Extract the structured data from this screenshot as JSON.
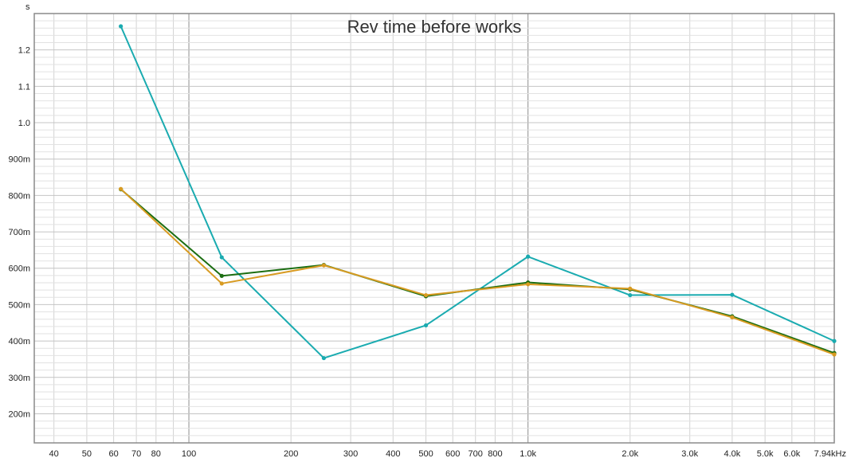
{
  "chart_data": {
    "type": "line",
    "title": "Rev time before works",
    "y_unit": "s",
    "x_scale": "log",
    "xlim": [
      35,
      8000
    ],
    "ylim": [
      0.12,
      1.3
    ],
    "grid": true,
    "x_ticks": [
      {
        "value": 40,
        "label": "40"
      },
      {
        "value": 50,
        "label": "50"
      },
      {
        "value": 60,
        "label": "60"
      },
      {
        "value": 70,
        "label": "70"
      },
      {
        "value": 80,
        "label": "80"
      },
      {
        "value": 100,
        "label": "100"
      },
      {
        "value": 200,
        "label": "200"
      },
      {
        "value": 300,
        "label": "300"
      },
      {
        "value": 400,
        "label": "400"
      },
      {
        "value": 500,
        "label": "500"
      },
      {
        "value": 600,
        "label": "600"
      },
      {
        "value": 700,
        "label": "700"
      },
      {
        "value": 800,
        "label": "800"
      },
      {
        "value": 1000,
        "label": "1.0k"
      },
      {
        "value": 2000,
        "label": "2.0k"
      },
      {
        "value": 3000,
        "label": "3.0k"
      },
      {
        "value": 4000,
        "label": "4.0k"
      },
      {
        "value": 5000,
        "label": "5.0k"
      },
      {
        "value": 6000,
        "label": "6.0k"
      },
      {
        "value": 7940,
        "label": "7.94kHz"
      }
    ],
    "y_ticks": [
      {
        "value": 0.2,
        "label": "200m"
      },
      {
        "value": 0.3,
        "label": "300m"
      },
      {
        "value": 0.4,
        "label": "400m"
      },
      {
        "value": 0.5,
        "label": "500m"
      },
      {
        "value": 0.6,
        "label": "600m"
      },
      {
        "value": 0.7,
        "label": "700m"
      },
      {
        "value": 0.8,
        "label": "800m"
      },
      {
        "value": 0.9,
        "label": "900m"
      },
      {
        "value": 1.0,
        "label": "1.0"
      },
      {
        "value": 1.1,
        "label": "1.1"
      },
      {
        "value": 1.2,
        "label": "1.2"
      }
    ],
    "series": [
      {
        "color": "#1aabb0",
        "x": [
          63,
          125,
          250,
          500,
          1000,
          2000,
          4000,
          8000
        ],
        "y": [
          1.265,
          0.63,
          0.353,
          0.443,
          0.632,
          0.526,
          0.527,
          0.4
        ]
      },
      {
        "color": "#1c6e12",
        "x": [
          63,
          125,
          250,
          500,
          1000,
          2000,
          4000,
          8000
        ],
        "y": [
          0.817,
          0.579,
          0.609,
          0.523,
          0.561,
          0.542,
          0.468,
          0.367
        ]
      },
      {
        "color": "#d89b22",
        "x": [
          63,
          125,
          250,
          500,
          1000,
          2000,
          4000,
          8000
        ],
        "y": [
          0.818,
          0.558,
          0.608,
          0.526,
          0.556,
          0.544,
          0.465,
          0.363
        ]
      }
    ]
  }
}
